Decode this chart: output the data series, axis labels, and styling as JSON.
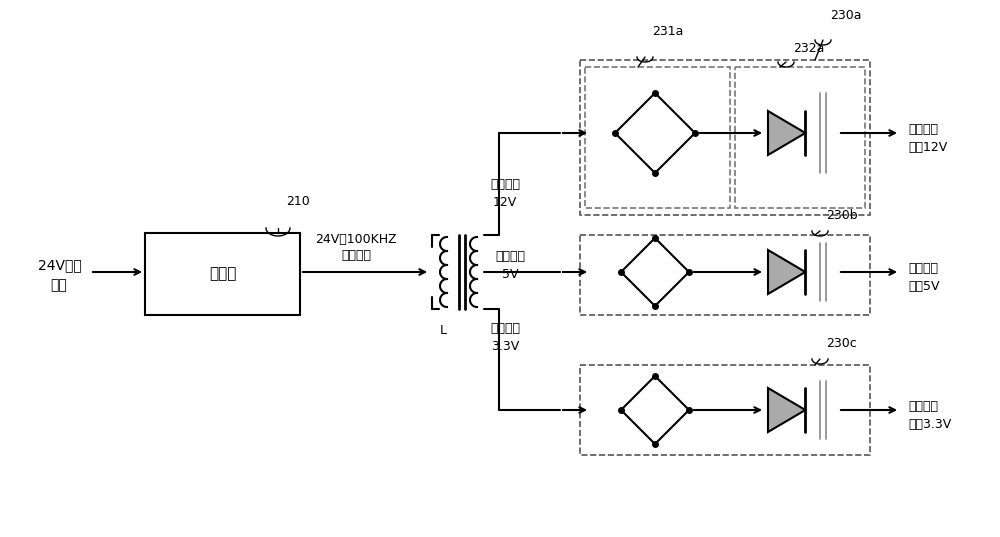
{
  "bg_color": "#ffffff",
  "line_color": "#000000",
  "fig_width": 10.0,
  "fig_height": 5.37,
  "input_label_line1": "24V直流",
  "input_label_line2": "电压",
  "oscillator_label": "振荡器",
  "oscillator_ref": "210",
  "osc_output_line1": "24V、100KHZ",
  "osc_output_line2": "交流电压",
  "transformer_label": "L",
  "ac_12v_line1": "交流电压",
  "ac_12v_line2": "12V",
  "ac_5v_line1": "交流电压",
  "ac_5v_line2": "5V",
  "ac_33v_line1": "交流电压",
  "ac_33v_line2": "3.3V",
  "out_12v_line1": "隔离直流",
  "out_12v_line2": "电压12V",
  "out_5v_line1": "隔离直流",
  "out_5v_line2": "电压5V",
  "out_33v_line1": "隔离直流",
  "out_33v_line2": "电压3.3V",
  "label_230a": "230a",
  "label_231a": "231a",
  "label_232a": "232a",
  "label_230b": "230b",
  "label_230c": "230c"
}
